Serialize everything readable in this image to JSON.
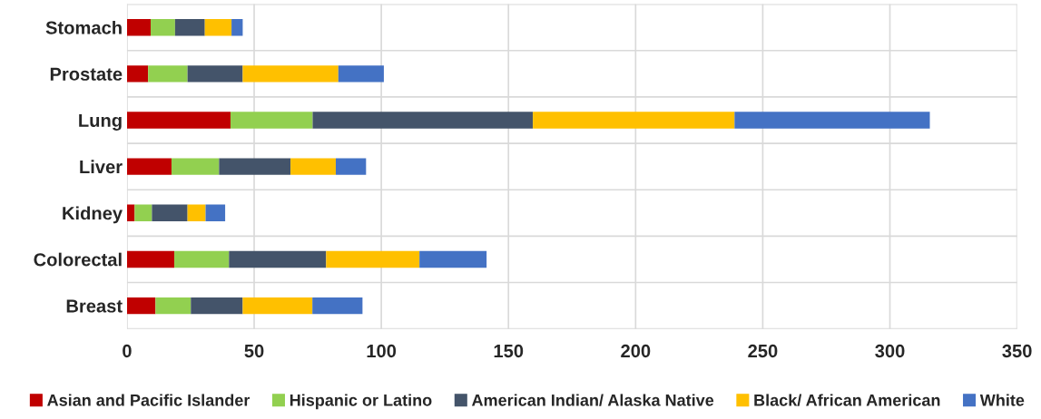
{
  "chart_data": {
    "type": "bar",
    "orientation": "horizontal",
    "stacked": true,
    "categories": [
      "Stomach",
      "Prostate",
      "Lung",
      "Liver",
      "Kidney",
      "Colorectal",
      "Breast"
    ],
    "series": [
      {
        "name": "Asian and Pacific Islander",
        "color": "#c00000",
        "values": [
          9.3,
          8.3,
          40.7,
          17.5,
          3.0,
          18.6,
          11.2
        ]
      },
      {
        "name": "Hispanic or Latino",
        "color": "#92d050",
        "values": [
          9.6,
          15.5,
          32.3,
          18.7,
          6.8,
          21.5,
          13.9
        ]
      },
      {
        "name": "American Indian/ Alaska Native",
        "color": "#44546a",
        "values": [
          11.7,
          21.7,
          86.6,
          28.1,
          14.0,
          38.2,
          20.4
        ]
      },
      {
        "name": "Black/ African American",
        "color": "#ffc000",
        "values": [
          10.5,
          37.6,
          79.3,
          17.8,
          7.1,
          36.7,
          27.4
        ]
      },
      {
        "name": "White",
        "color": "#4472c4",
        "values": [
          4.4,
          17.9,
          76.8,
          11.9,
          7.7,
          26.4,
          19.7
        ]
      }
    ],
    "xlim": [
      0,
      350
    ],
    "xticks": [
      0,
      50,
      100,
      150,
      200,
      250,
      300,
      350
    ],
    "grid": true,
    "legend": "bottom"
  }
}
